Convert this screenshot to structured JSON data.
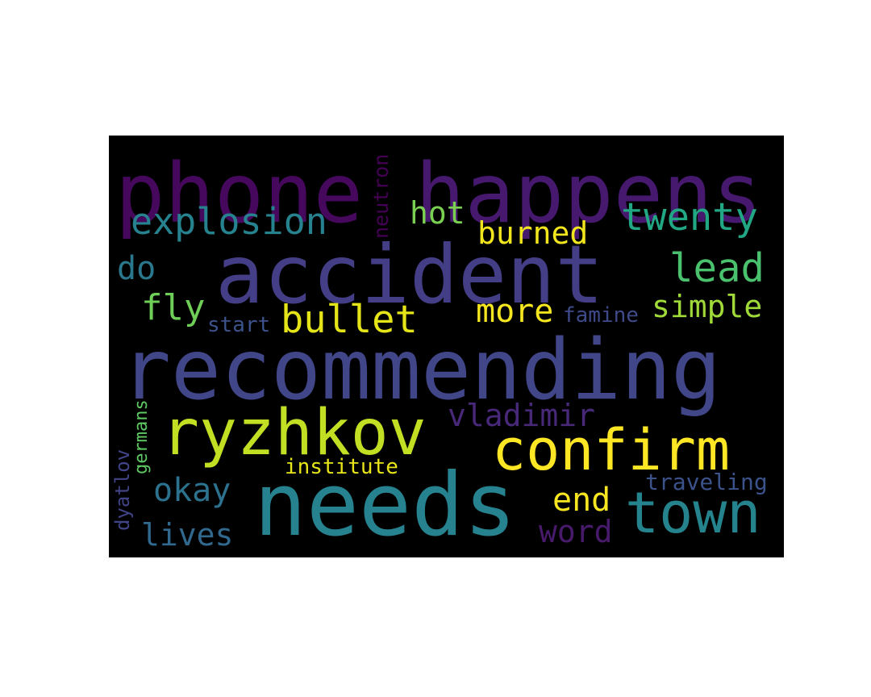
{
  "words": [
    {
      "text": "phone",
      "color": "#46085c",
      "vertical": false
    },
    {
      "text": "happens",
      "color": "#46186e",
      "vertical": false
    },
    {
      "text": "accident",
      "color": "#433e85",
      "vertical": false
    },
    {
      "text": "recommending",
      "color": "#404688",
      "vertical": false
    },
    {
      "text": "needs",
      "color": "#26828e",
      "vertical": false
    },
    {
      "text": "ryzhkov",
      "color": "#c2df23",
      "vertical": false
    },
    {
      "text": "confirm",
      "color": "#fde725",
      "vertical": false
    },
    {
      "text": "town",
      "color": "#25838e",
      "vertical": false
    },
    {
      "text": "explosion",
      "color": "#26828e",
      "vertical": false
    },
    {
      "text": "twenty",
      "color": "#22a785",
      "vertical": false
    },
    {
      "text": "lead",
      "color": "#4ac16d",
      "vertical": false
    },
    {
      "text": "bullet",
      "color": "#e5e419",
      "vertical": false
    },
    {
      "text": "burned",
      "color": "#f1e51d",
      "vertical": false
    },
    {
      "text": "hot",
      "color": "#7ad151",
      "vertical": false
    },
    {
      "text": "do",
      "color": "#2a788e",
      "vertical": false
    },
    {
      "text": "fly",
      "color": "#6ece58",
      "vertical": false
    },
    {
      "text": "more",
      "color": "#f6e620",
      "vertical": false
    },
    {
      "text": "simple",
      "color": "#a0da39",
      "vertical": false
    },
    {
      "text": "start",
      "color": "#3b528b",
      "vertical": false
    },
    {
      "text": "famine",
      "color": "#3e4a89",
      "vertical": false
    },
    {
      "text": "vladimir",
      "color": "#482878",
      "vertical": false
    },
    {
      "text": "okay",
      "color": "#2c728e",
      "vertical": false
    },
    {
      "text": "end",
      "color": "#f8e621",
      "vertical": false
    },
    {
      "text": "word",
      "color": "#481a6c",
      "vertical": false
    },
    {
      "text": "lives",
      "color": "#31688e",
      "vertical": false
    },
    {
      "text": "institute",
      "color": "#e7e419",
      "vertical": false
    },
    {
      "text": "traveling",
      "color": "#3b528b",
      "vertical": false
    },
    {
      "text": "neutron",
      "color": "#440154",
      "vertical": true
    },
    {
      "text": "germans",
      "color": "#5ec962",
      "vertical": true
    },
    {
      "text": "dyatlov",
      "color": "#414487",
      "vertical": true
    }
  ]
}
